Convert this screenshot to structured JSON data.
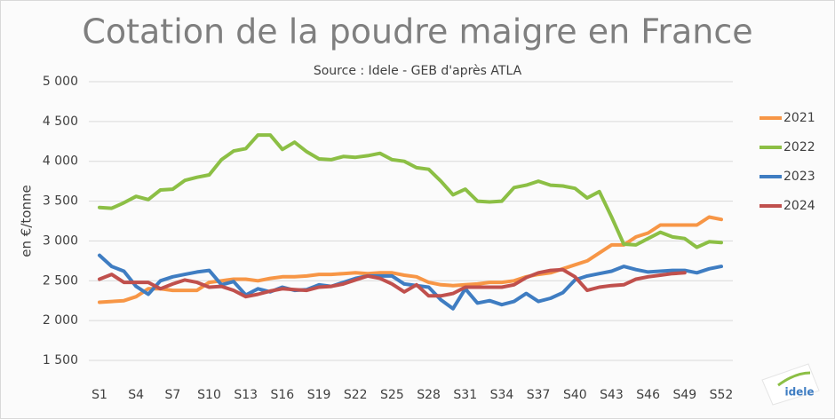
{
  "chart_data": {
    "type": "line",
    "title": "Cotation de la poudre maigre en France",
    "subtitle": "Source : Idele - GEB d'après ATLA",
    "y_label": "en €/tonne",
    "categories": [
      "S1",
      null,
      null,
      "S4",
      null,
      null,
      "S7",
      null,
      null,
      "S10",
      null,
      null,
      "S13",
      null,
      null,
      "S16",
      null,
      null,
      "S19",
      null,
      null,
      "S22",
      null,
      null,
      "S25",
      null,
      null,
      "S28",
      null,
      null,
      "S31",
      null,
      null,
      "S34",
      null,
      null,
      "S37",
      null,
      null,
      "S40",
      null,
      null,
      "S43",
      null,
      null,
      "S46",
      null,
      null,
      "S49",
      null,
      null,
      "S52"
    ],
    "series": [
      {
        "name": "2021",
        "color": "#f79646",
        "values": [
          2230,
          2240,
          2250,
          2300,
          2400,
          2400,
          2380,
          2380,
          2380,
          2480,
          2500,
          2520,
          2520,
          2500,
          2530,
          2550,
          2550,
          2560,
          2580,
          2580,
          2590,
          2600,
          2590,
          2600,
          2600,
          2570,
          2550,
          2480,
          2450,
          2440,
          2450,
          2460,
          2480,
          2480,
          2500,
          2550,
          2580,
          2600,
          2650,
          2700,
          2750,
          2850,
          2950,
          2950,
          3050,
          3100,
          3200,
          3200,
          3200,
          3200,
          3300,
          3270
        ]
      },
      {
        "name": "2022",
        "color": "#8cbf45",
        "values": [
          3420,
          3410,
          3480,
          3560,
          3520,
          3640,
          3650,
          3760,
          3800,
          3830,
          4020,
          4130,
          4160,
          4330,
          4330,
          4150,
          4240,
          4120,
          4030,
          4020,
          4060,
          4050,
          4070,
          4100,
          4020,
          4000,
          3920,
          3900,
          3750,
          3580,
          3650,
          3500,
          3490,
          3500,
          3670,
          3700,
          3750,
          3700,
          3690,
          3660,
          3540,
          3620,
          3300,
          2960,
          2950,
          3030,
          3110,
          3050,
          3030,
          2920,
          2990,
          2980
        ]
      },
      {
        "name": "2023",
        "color": "#3f7dc2",
        "values": [
          2820,
          2680,
          2620,
          2430,
          2330,
          2500,
          2550,
          2580,
          2610,
          2630,
          2450,
          2490,
          2320,
          2400,
          2360,
          2420,
          2380,
          2390,
          2450,
          2430,
          2480,
          2530,
          2560,
          2560,
          2560,
          2460,
          2440,
          2420,
          2260,
          2150,
          2400,
          2220,
          2250,
          2200,
          2240,
          2340,
          2240,
          2280,
          2350,
          2510,
          2560,
          2590,
          2620,
          2680,
          2640,
          2610,
          2620,
          2630,
          2630,
          2600,
          2650,
          2680
        ]
      },
      {
        "name": "2024",
        "color": "#c0504d",
        "values": [
          2520,
          2580,
          2480,
          2480,
          2480,
          2400,
          2460,
          2510,
          2480,
          2420,
          2430,
          2380,
          2300,
          2330,
          2370,
          2400,
          2390,
          2380,
          2420,
          2430,
          2460,
          2510,
          2560,
          2530,
          2460,
          2360,
          2450,
          2310,
          2310,
          2340,
          2420,
          2420,
          2420,
          2420,
          2450,
          2540,
          2600,
          2630,
          2640,
          2550,
          2380,
          2420,
          2440,
          2450,
          2520,
          2550,
          2570,
          2590,
          2600,
          null,
          null,
          null
        ]
      }
    ],
    "ylim": [
      1500,
      5000
    ],
    "yticks": [
      {
        "value": 1500,
        "label": "1 500"
      },
      {
        "value": 2000,
        "label": "2 000"
      },
      {
        "value": 2500,
        "label": "2 500"
      },
      {
        "value": 3000,
        "label": "3 000"
      },
      {
        "value": 3500,
        "label": "3 500"
      },
      {
        "value": 4000,
        "label": "4 000"
      },
      {
        "value": 4500,
        "label": "4 500"
      },
      {
        "value": 5000,
        "label": "5 000"
      }
    ],
    "grid": true,
    "legend": "right"
  },
  "logo": "idele"
}
